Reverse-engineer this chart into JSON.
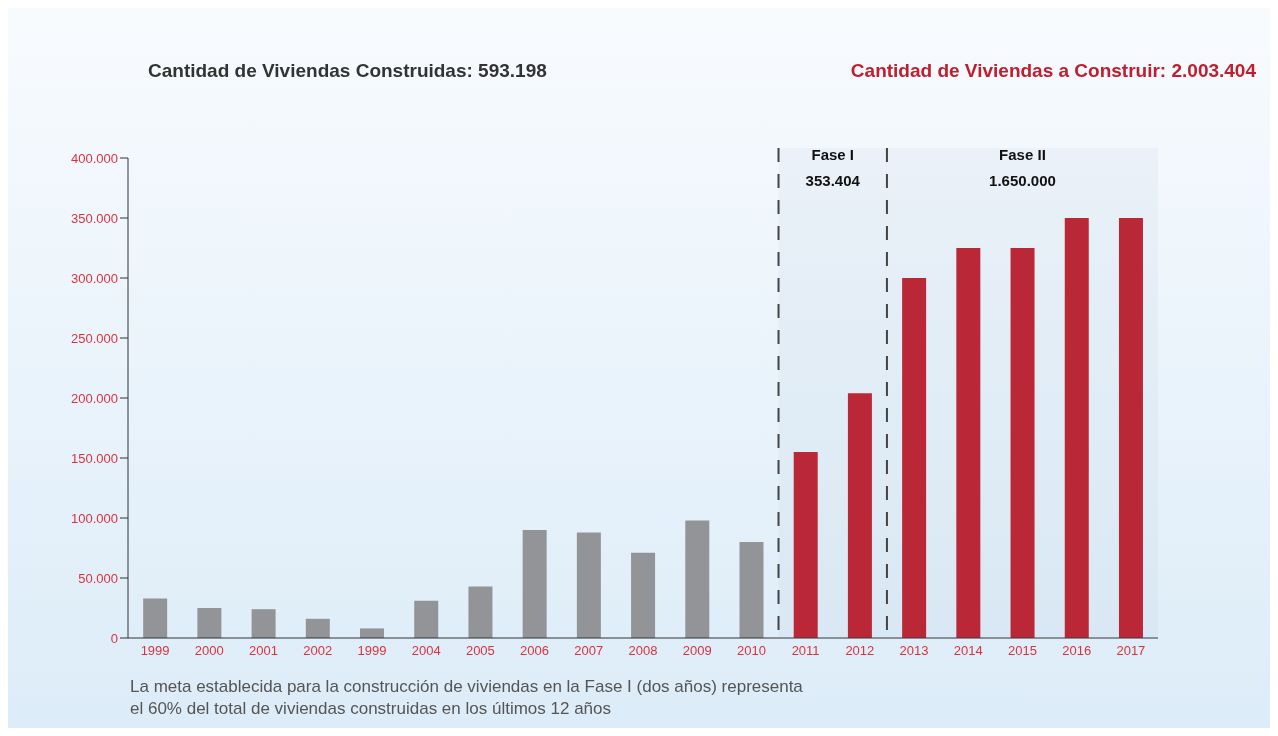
{
  "chart_data": {
    "type": "bar",
    "title": "Cantidad de Viviendas Construidas: 593.198",
    "subtitle": "Cantidad de Viviendas a Construir: 2.003.404",
    "categories": [
      "1999",
      "2000",
      "2001",
      "2002",
      "1999",
      "2004",
      "2005",
      "2006",
      "2007",
      "2008",
      "2009",
      "2010",
      "2011",
      "2012",
      "2013",
      "2014",
      "2015",
      "2016",
      "2017"
    ],
    "values": [
      33000,
      25000,
      24000,
      16000,
      8000,
      31000,
      43000,
      90000,
      88000,
      71000,
      98000,
      80000,
      155000,
      204000,
      300000,
      325000,
      325000,
      350000,
      350000
    ],
    "colors": [
      "#929497",
      "#929497",
      "#929497",
      "#929497",
      "#929497",
      "#929497",
      "#929497",
      "#929497",
      "#929497",
      "#929497",
      "#929497",
      "#929497",
      "#be1e2d",
      "#be1e2d",
      "#be1e2d",
      "#be1e2d",
      "#be1e2d",
      "#be1e2d",
      "#be1e2d"
    ],
    "ylim": [
      0,
      400000
    ],
    "yticks": [
      0,
      {
        "value": 50000,
        "label": "50.000"
      },
      {
        "value": 100000,
        "label": "100.000"
      },
      {
        "value": 150000,
        "label": "150.000"
      },
      {
        "value": 200000,
        "label": "200.000"
      },
      {
        "value": 250000,
        "label": "250.000"
      },
      {
        "value": 300000,
        "label": "300.000"
      },
      {
        "value": 350000,
        "label": "350.000"
      },
      {
        "value": 400000,
        "label": "400.000"
      }
    ],
    "bands": [
      {
        "axis": "x",
        "from": "2011",
        "to": "2012",
        "label": "Fase I\n353.404"
      },
      {
        "axis": "x",
        "from": "2013",
        "to": "2017",
        "label": "Fase II\n1.650.000"
      }
    ],
    "annotations": [
      "La meta establecida para la construcción de viviendas en la Fase I (dos años) representa\nel 60% del total de viviendas construidas en los últimos 12 años"
    ],
    "grid": false,
    "legend": false
  }
}
